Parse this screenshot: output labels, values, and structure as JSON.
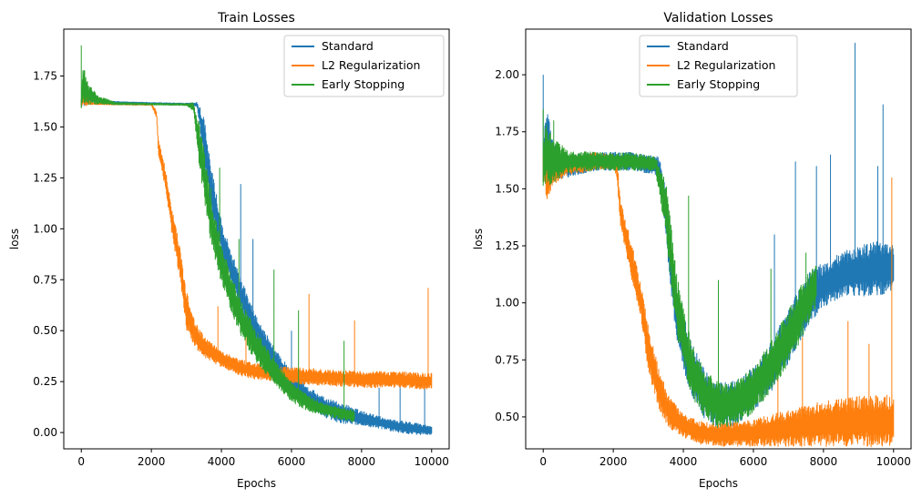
{
  "chart_data": [
    {
      "type": "line",
      "title": "Train Losses",
      "xlabel": "Epochs",
      "ylabel": "loss",
      "xlim": [
        -500,
        10500
      ],
      "ylim": [
        -0.08,
        1.98
      ],
      "xticks": [
        0,
        2000,
        4000,
        6000,
        8000,
        10000
      ],
      "xtick_labels": [
        "0",
        "2000",
        "4000",
        "6000",
        "8000",
        "10000"
      ],
      "yticks": [
        0.0,
        0.25,
        0.5,
        0.75,
        1.0,
        1.25,
        1.5,
        1.75
      ],
      "ytick_labels": [
        "0.00",
        "0.25",
        "0.50",
        "0.75",
        "1.00",
        "1.25",
        "1.50",
        "1.75"
      ],
      "grid": false,
      "legend_position": "top-right",
      "series": [
        {
          "name": "Standard",
          "color": "#1f77b4",
          "x": [
            0,
            50,
            300,
            1000,
            2000,
            3000,
            3300,
            3500,
            3700,
            4000,
            4500,
            5000,
            5500,
            6000,
            6500,
            7000,
            7500,
            7800,
            8500,
            9000,
            9500,
            10000
          ],
          "y": [
            1.62,
            1.66,
            1.63,
            1.62,
            1.615,
            1.612,
            1.61,
            1.45,
            1.2,
            0.95,
            0.7,
            0.5,
            0.36,
            0.25,
            0.17,
            0.12,
            0.09,
            0.08,
            0.05,
            0.03,
            0.02,
            0.01
          ],
          "noise": [
            0.03,
            0.06,
            0.01,
            0.005,
            0.005,
            0.005,
            0.01,
            0.12,
            0.12,
            0.09,
            0.08,
            0.07,
            0.06,
            0.05,
            0.05,
            0.05,
            0.05,
            0.04,
            0.03,
            0.03,
            0.03,
            0.02
          ],
          "spikes": [
            [
              4550,
              1.22
            ],
            [
              4900,
              0.95
            ],
            [
              6000,
              0.5
            ],
            [
              8500,
              0.22
            ],
            [
              9100,
              0.28
            ],
            [
              9800,
              0.25
            ]
          ]
        },
        {
          "name": "L2 Regularization",
          "color": "#ff7f0e",
          "x": [
            0,
            50,
            300,
            1000,
            2000,
            2150,
            2200,
            2400,
            2600,
            2800,
            3000,
            3200,
            3500,
            4000,
            4500,
            5000,
            6000,
            7000,
            8000,
            9000,
            10000
          ],
          "y": [
            1.62,
            1.64,
            1.615,
            1.612,
            1.61,
            1.56,
            1.4,
            1.25,
            1.02,
            0.85,
            0.6,
            0.5,
            0.42,
            0.36,
            0.32,
            0.3,
            0.28,
            0.27,
            0.26,
            0.26,
            0.25
          ],
          "noise": [
            0.02,
            0.04,
            0.005,
            0.004,
            0.004,
            0.02,
            0.04,
            0.05,
            0.07,
            0.08,
            0.1,
            0.07,
            0.05,
            0.04,
            0.04,
            0.04,
            0.04,
            0.04,
            0.04,
            0.04,
            0.04
          ],
          "spikes": [
            [
              2900,
              0.68
            ],
            [
              3900,
              0.62
            ],
            [
              4700,
              0.55
            ],
            [
              6500,
              0.68
            ],
            [
              7800,
              0.55
            ],
            [
              9900,
              0.71
            ]
          ]
        },
        {
          "name": "Early Stopping",
          "color": "#2ca02c",
          "x": [
            0,
            50,
            200,
            500,
            1000,
            2000,
            3000,
            3200,
            3400,
            3700,
            4000,
            4500,
            5000,
            5500,
            6000,
            6500,
            7000,
            7500,
            7800
          ],
          "y": [
            1.62,
            1.72,
            1.66,
            1.63,
            1.615,
            1.612,
            1.61,
            1.6,
            1.38,
            1.05,
            0.82,
            0.58,
            0.42,
            0.3,
            0.2,
            0.14,
            0.11,
            0.09,
            0.08
          ],
          "noise": [
            0.04,
            0.1,
            0.05,
            0.02,
            0.006,
            0.004,
            0.005,
            0.02,
            0.12,
            0.12,
            0.1,
            0.09,
            0.08,
            0.06,
            0.05,
            0.04,
            0.03,
            0.03,
            0.03
          ],
          "spikes": [
            [
              0,
              1.9
            ],
            [
              3950,
              1.3
            ],
            [
              3700,
              1.2
            ],
            [
              4500,
              0.95
            ],
            [
              5500,
              0.8
            ],
            [
              6200,
              0.6
            ],
            [
              7500,
              0.45
            ]
          ]
        }
      ]
    },
    {
      "type": "line",
      "title": "Validation Losses",
      "xlabel": "Epochs",
      "ylabel": "loss",
      "xlim": [
        -500,
        10500
      ],
      "ylim": [
        0.36,
        2.2
      ],
      "xticks": [
        0,
        2000,
        4000,
        6000,
        8000,
        10000
      ],
      "xtick_labels": [
        "0",
        "2000",
        "4000",
        "6000",
        "8000",
        "10000"
      ],
      "yticks": [
        0.5,
        0.75,
        1.0,
        1.25,
        1.5,
        1.75,
        2.0
      ],
      "ytick_labels": [
        "0.50",
        "0.75",
        "1.00",
        "1.25",
        "1.50",
        "1.75",
        "2.00"
      ],
      "grid": false,
      "legend_position": "top-center",
      "series": [
        {
          "name": "Standard",
          "color": "#1f77b4",
          "x": [
            0,
            100,
            300,
            700,
            1500,
            2500,
            3300,
            3500,
            3800,
            4200,
            4600,
            5000,
            5500,
            6000,
            6500,
            7000,
            7500,
            8000,
            8500,
            9000,
            9500,
            10000
          ],
          "y": [
            1.62,
            1.72,
            1.62,
            1.6,
            1.62,
            1.62,
            1.6,
            1.4,
            0.95,
            0.72,
            0.6,
            0.55,
            0.56,
            0.62,
            0.72,
            0.85,
            1.0,
            1.08,
            1.12,
            1.14,
            1.15,
            1.15
          ],
          "noise": [
            0.1,
            0.14,
            0.08,
            0.05,
            0.04,
            0.04,
            0.04,
            0.12,
            0.13,
            0.12,
            0.11,
            0.1,
            0.1,
            0.1,
            0.11,
            0.12,
            0.12,
            0.1,
            0.1,
            0.11,
            0.12,
            0.1
          ],
          "spikes": [
            [
              0,
              2.0
            ],
            [
              7200,
              1.62
            ],
            [
              7800,
              1.6
            ],
            [
              8200,
              1.65
            ],
            [
              8900,
              2.14
            ],
            [
              9700,
              1.87
            ],
            [
              9550,
              1.6
            ],
            [
              6600,
              1.3
            ]
          ]
        },
        {
          "name": "L2 Regularization",
          "color": "#ff7f0e",
          "x": [
            0,
            100,
            300,
            700,
            1500,
            2000,
            2100,
            2200,
            2500,
            2800,
            3000,
            3300,
            3600,
            4000,
            4500,
            5000,
            6000,
            7000,
            8000,
            9000,
            10000
          ],
          "y": [
            1.6,
            1.55,
            1.58,
            1.6,
            1.62,
            1.62,
            1.6,
            1.4,
            1.2,
            1.0,
            0.8,
            0.62,
            0.52,
            0.46,
            0.43,
            0.42,
            0.43,
            0.45,
            0.47,
            0.48,
            0.48
          ],
          "noise": [
            0.08,
            0.1,
            0.06,
            0.04,
            0.04,
            0.03,
            0.05,
            0.06,
            0.08,
            0.08,
            0.1,
            0.09,
            0.07,
            0.05,
            0.05,
            0.05,
            0.06,
            0.08,
            0.1,
            0.11,
            0.12
          ],
          "spikes": [
            [
              9950,
              1.55
            ],
            [
              8700,
              0.92
            ],
            [
              7400,
              0.85
            ],
            [
              6700,
              0.8
            ],
            [
              9300,
              0.82
            ]
          ]
        },
        {
          "name": "Early Stopping",
          "color": "#2ca02c",
          "x": [
            0,
            100,
            300,
            700,
            1500,
            2500,
            3200,
            3500,
            3800,
            4200,
            4600,
            5000,
            5500,
            6000,
            6500,
            7000,
            7500,
            7800
          ],
          "y": [
            1.62,
            1.65,
            1.62,
            1.62,
            1.62,
            1.62,
            1.61,
            1.42,
            1.0,
            0.72,
            0.6,
            0.55,
            0.56,
            0.62,
            0.72,
            0.85,
            1.0,
            1.08
          ],
          "noise": [
            0.12,
            0.14,
            0.1,
            0.05,
            0.04,
            0.04,
            0.03,
            0.12,
            0.14,
            0.12,
            0.11,
            0.1,
            0.1,
            0.1,
            0.11,
            0.12,
            0.12,
            0.1
          ],
          "spikes": [
            [
              0,
              1.85
            ],
            [
              300,
              1.8
            ],
            [
              4150,
              1.47
            ],
            [
              5000,
              1.1
            ],
            [
              6500,
              1.15
            ],
            [
              7500,
              1.22
            ]
          ]
        }
      ]
    }
  ]
}
